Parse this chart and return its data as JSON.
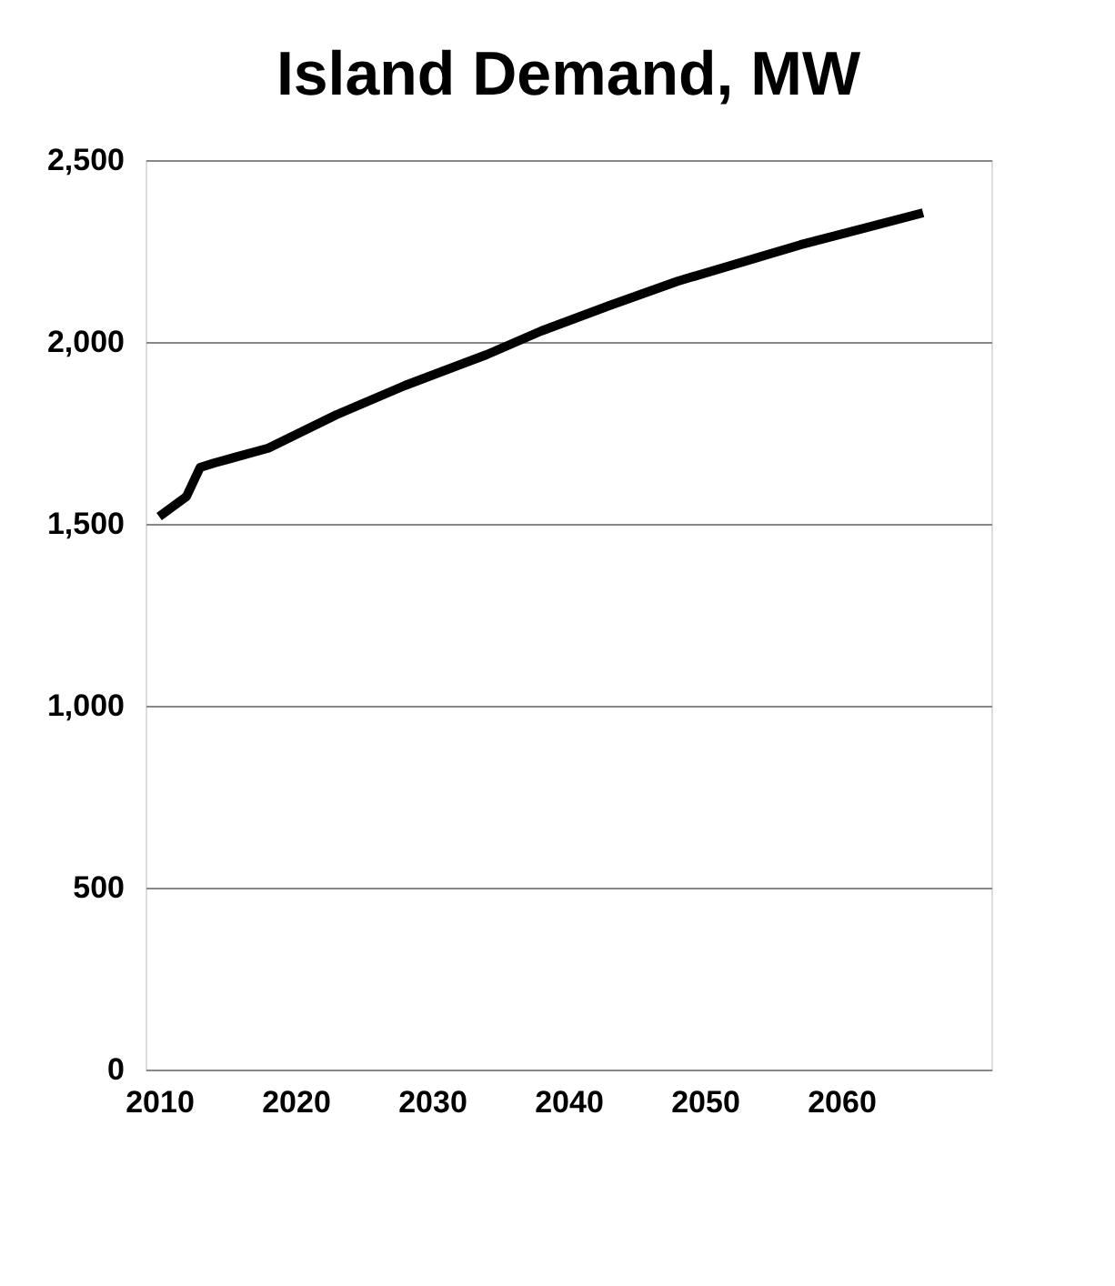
{
  "chart_data": {
    "type": "line",
    "title": "Island Demand, MW",
    "x": [
      2010,
      2012,
      2013,
      2014,
      2018,
      2023,
      2028,
      2034,
      2038,
      2043,
      2048,
      2057,
      2066
    ],
    "series": [
      {
        "color": "#000000",
        "values": [
          1520,
          1575,
          1655,
          1667,
          1708,
          1800,
          1880,
          1965,
          2030,
          2100,
          2167,
          2267,
          2355
        ]
      }
    ],
    "xlim": [
      2009,
      2071
    ],
    "xticks": [
      2010,
      2020,
      2030,
      2040,
      2050,
      2060
    ],
    "ylim": [
      0,
      2500
    ],
    "yticks": [
      0,
      500,
      {
        "value": 1000,
        "label": "1,000"
      },
      {
        "value": 1500,
        "label": "1,500"
      },
      {
        "value": 2000,
        "label": "2,000"
      },
      {
        "value": 2500,
        "label": "2,500"
      }
    ],
    "grid": "y",
    "marker": "none",
    "line_style": "solid"
  }
}
